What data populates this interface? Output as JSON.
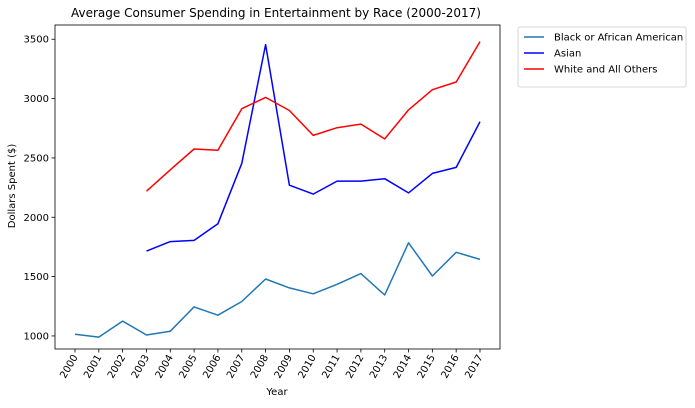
{
  "chart_data": {
    "type": "line",
    "title": "Average Consumer Spending in Entertainment by Race (2000-2017)",
    "xlabel": "Year",
    "ylabel": "Dollars Spent ($)",
    "categories": [
      "2000",
      "2001",
      "2002",
      "2003",
      "2004",
      "2005",
      "2006",
      "2007",
      "2008",
      "2009",
      "2010",
      "2011",
      "2012",
      "2013",
      "2014",
      "2015",
      "2016",
      "2017"
    ],
    "yticks": [
      1000,
      1500,
      2000,
      2500,
      3000,
      3500
    ],
    "ylim": [
      890,
      3620
    ],
    "grid": false,
    "legend_position": "outside-top-right",
    "series": [
      {
        "name": "Black or African American",
        "color": "#1f77b4",
        "values": [
          1015,
          990,
          1125,
          1008,
          1040,
          1245,
          1175,
          1290,
          1480,
          1405,
          1355,
          1435,
          1525,
          1345,
          1785,
          1505,
          1705,
          1645
        ]
      },
      {
        "name": "Asian",
        "color": "#0000ff",
        "values": [
          null,
          null,
          null,
          1715,
          1795,
          1805,
          1945,
          2455,
          3455,
          2270,
          2195,
          2305,
          2305,
          2325,
          2205,
          2370,
          2420,
          2805
        ]
      },
      {
        "name": "White and All Others",
        "color": "#ff0000",
        "values": [
          null,
          null,
          null,
          2220,
          2400,
          2575,
          2565,
          2915,
          3010,
          2900,
          2690,
          2755,
          2785,
          2660,
          2905,
          3075,
          3140,
          3480
        ]
      }
    ]
  }
}
